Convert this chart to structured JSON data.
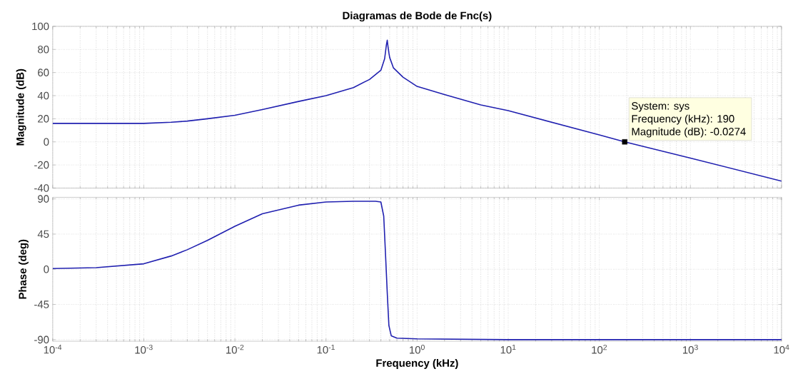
{
  "chart_data": [
    {
      "type": "line",
      "title": "Diagramas de Bode de Fnc(s)",
      "ylabel": "Magnitude (dB)",
      "log": "x",
      "grid": true,
      "tick_labels": "y",
      "xlim": [
        0.0001,
        10000
      ],
      "xticks": [
        {
          "value": 0.0001,
          "label": null
        },
        {
          "value": 0.001,
          "label": null
        },
        {
          "value": 0.01,
          "label": null
        },
        {
          "value": 0.1,
          "label": null
        },
        {
          "value": 1,
          "label": null
        },
        {
          "value": 10,
          "label": null
        },
        {
          "value": 100,
          "label": null
        },
        {
          "value": 1000,
          "label": null
        },
        {
          "value": 10000,
          "label": null
        }
      ],
      "ylim": [
        -40,
        100
      ],
      "yticks": [
        -40,
        -20,
        0,
        20,
        40,
        60,
        80,
        100
      ],
      "annotations": [
        "System: sys",
        "Frequency (kHz): 190",
        "Magnitude (dB): -0.0274"
      ],
      "series": [
        {
          "color": "#2020b0",
          "x": [
            0.0001,
            0.001,
            0.002,
            0.003,
            0.005,
            0.01,
            0.02,
            0.05,
            0.1,
            0.2,
            0.3,
            0.4,
            0.44,
            0.45,
            0.46,
            0.47,
            0.48,
            0.49,
            0.5,
            0.55,
            0.7,
            1,
            2,
            5,
            10,
            100,
            190,
            1000,
            10000
          ],
          "values": [
            16,
            16,
            17,
            18,
            20,
            23,
            28,
            35,
            40,
            47,
            54,
            62,
            72,
            78,
            84,
            88,
            82,
            77,
            73,
            64,
            56,
            48,
            41,
            32,
            27,
            6,
            0,
            -14,
            -34
          ]
        },
        {
          "type": "scatter",
          "marker": "square",
          "color": "#000000",
          "x": [
            190
          ],
          "values": [
            0
          ]
        }
      ]
    },
    {
      "type": "line",
      "ylabel": "Phase (deg)",
      "xlabel": "Frequency  (kHz)",
      "log": "x",
      "grid": true,
      "xlim": [
        0.0001,
        10000
      ],
      "xticks": [
        {
          "value": 0.0001,
          "label": "10$^{-4}$"
        },
        {
          "value": 0.001,
          "label": "10$^{-3}$"
        },
        {
          "value": 0.01,
          "label": "10$^{-2}$"
        },
        {
          "value": 0.1,
          "label": "10$^{-1}$"
        },
        {
          "value": 1,
          "label": "10$^{0}$"
        },
        {
          "value": 10,
          "label": "10$^{1}$"
        },
        {
          "value": 100,
          "label": "10$^{2}$"
        },
        {
          "value": 1000,
          "label": "10$^{3}$"
        },
        {
          "value": 10000,
          "label": "10$^{4}$"
        }
      ],
      "ylim": [
        -92,
        92
      ],
      "yticks": [
        -90,
        -45,
        0,
        45,
        90
      ],
      "series": [
        {
          "color": "#2020b0",
          "x": [
            0.0001,
            0.0003,
            0.001,
            0.002,
            0.003,
            0.005,
            0.01,
            0.02,
            0.05,
            0.1,
            0.2,
            0.35,
            0.4,
            0.43,
            0.45,
            0.47,
            0.49,
            0.52,
            0.6,
            1,
            10,
            100,
            1000,
            10000
          ],
          "values": [
            1,
            2,
            7,
            17,
            25,
            37,
            55,
            71,
            82,
            86,
            87,
            87,
            86,
            68,
            19,
            -30,
            -72,
            -85,
            -88,
            -89,
            -90,
            -90,
            -90,
            -90
          ]
        }
      ]
    }
  ]
}
